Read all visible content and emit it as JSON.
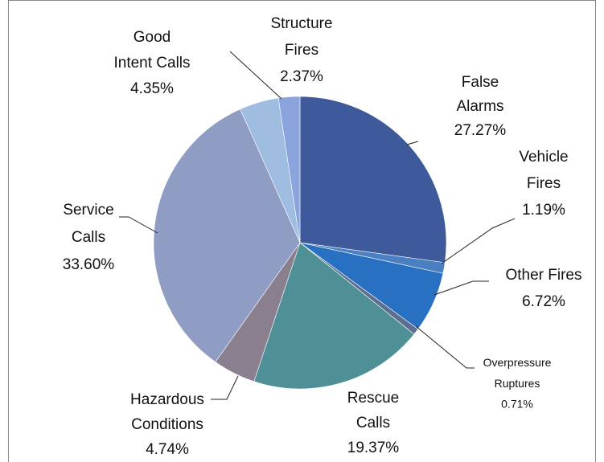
{
  "chart_data": {
    "type": "pie",
    "categories": [
      "False Alarms",
      "Vehicle Fires",
      "Other Fires",
      "Overpressure Ruptures",
      "Rescue Calls",
      "Hazardous Conditions",
      "Service Calls",
      "Good Intent Calls",
      "Structure Fires"
    ],
    "values": [
      27.27,
      1.19,
      6.72,
      0.71,
      19.37,
      4.74,
      33.6,
      4.35,
      2.37
    ],
    "value_labels": [
      "27.27%",
      "1.19%",
      "6.72%",
      "0.71%",
      "19.37%",
      "4.74%",
      "33.60%",
      "4.35%",
      "2.37%"
    ],
    "colors": [
      "#3f5a9a",
      "#4a80c2",
      "#2870c2",
      "#5c6f8e",
      "#4e9096",
      "#8a7f8e",
      "#8f9cc4",
      "#9fbde0",
      "#8aa4de"
    ]
  }
}
